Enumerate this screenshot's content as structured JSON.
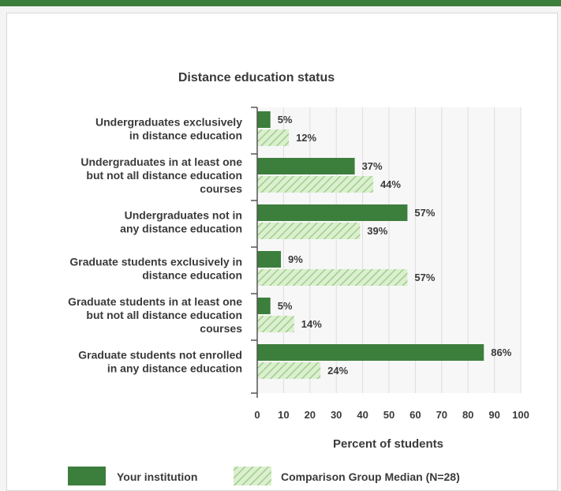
{
  "colors": {
    "institution": "#3c7e3c",
    "comparison_fill": "#dcefd0",
    "comparison_stripe": "#9fcf8a",
    "grid": "#dddddd",
    "plot_bg": "#f7f7f7"
  },
  "chart_data": {
    "type": "bar",
    "orientation": "horizontal",
    "title": "Distance education status",
    "xlabel": "Percent of students",
    "ylabel": "",
    "xlim": [
      0,
      100
    ],
    "xticks": [
      0,
      10,
      20,
      30,
      40,
      50,
      60,
      70,
      80,
      90,
      100
    ],
    "grid": true,
    "legend_position": "bottom",
    "categories": [
      [
        "Undergraduates exclusively",
        "in distance education"
      ],
      [
        "Undergraduates in at least one",
        "but not all distance education",
        "courses"
      ],
      [
        "Undergraduates not in",
        "any distance education"
      ],
      [
        "Graduate students exclusively in",
        "distance education"
      ],
      [
        "Graduate students in at least one",
        "but not all distance education",
        "courses"
      ],
      [
        "Graduate students not enrolled",
        "in any distance education"
      ]
    ],
    "series": [
      {
        "name": "Your institution",
        "values": [
          5,
          37,
          57,
          9,
          5,
          86
        ],
        "labels": [
          "5%",
          "37%",
          "57%",
          "9%",
          "5%",
          "86%"
        ]
      },
      {
        "name": "Comparison Group Median (N=28)",
        "values": [
          12,
          44,
          39,
          57,
          14,
          24
        ],
        "labels": [
          "12%",
          "44%",
          "39%",
          "57%",
          "14%",
          "24%"
        ]
      }
    ]
  }
}
